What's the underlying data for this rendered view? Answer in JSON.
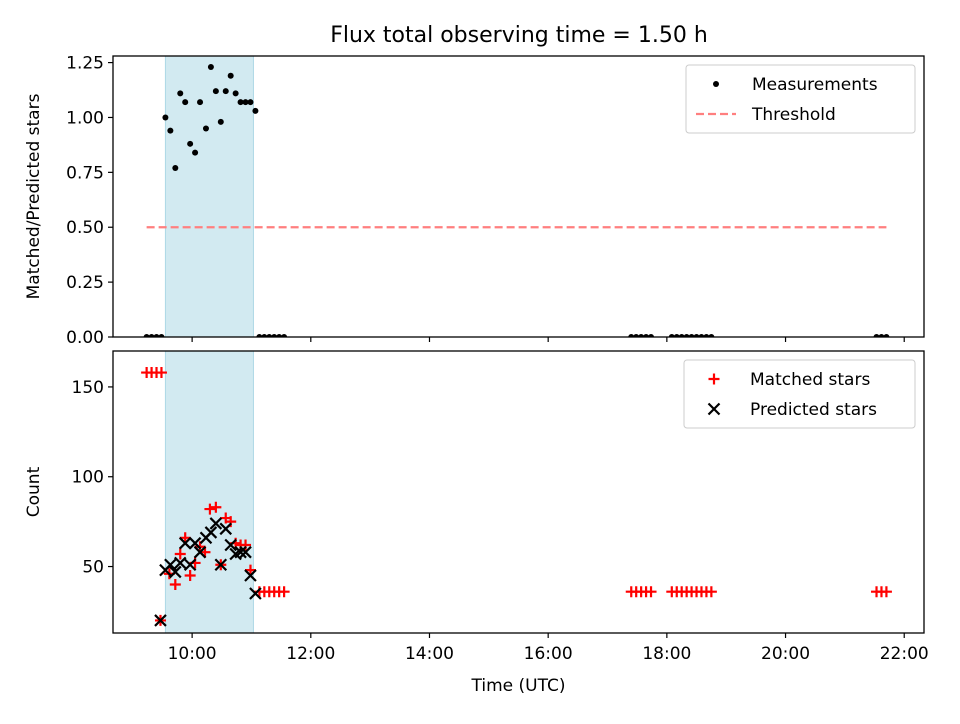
{
  "title": "Flux total observing time = 1.50 h",
  "chart_data": [
    {
      "type": "scatter",
      "panel": "top",
      "ylabel": "Matched/Predicted stars",
      "xlabel": "",
      "x_range": [
        "08:40",
        "22:20"
      ],
      "ylim": [
        0,
        1.28
      ],
      "yticks": [
        0.0,
        0.25,
        0.5,
        0.75,
        1.0,
        1.25
      ],
      "ytick_labels": [
        "0.00",
        "0.25",
        "0.50",
        "0.75",
        "1.00",
        "1.25"
      ],
      "highlight_span": [
        "09:33",
        "11:02"
      ],
      "legend_position": "top-right",
      "series": [
        {
          "name": "Measurements",
          "marker": "dot",
          "color": "#000000",
          "points": [
            [
              "09:14",
              0.0
            ],
            [
              "09:19",
              0.0
            ],
            [
              "09:24",
              0.0
            ],
            [
              "09:29",
              0.0
            ],
            [
              "09:33",
              1.0
            ],
            [
              "09:38",
              0.94
            ],
            [
              "09:43",
              0.77
            ],
            [
              "09:48",
              1.11
            ],
            [
              "09:53",
              1.07
            ],
            [
              "09:58",
              0.88
            ],
            [
              "10:03",
              0.84
            ],
            [
              "10:08",
              1.07
            ],
            [
              "10:14",
              0.95
            ],
            [
              "10:19",
              1.23
            ],
            [
              "10:24",
              1.12
            ],
            [
              "10:29",
              0.98
            ],
            [
              "10:34",
              1.12
            ],
            [
              "10:39",
              1.19
            ],
            [
              "10:44",
              1.11
            ],
            [
              "10:49",
              1.07
            ],
            [
              "10:54",
              1.07
            ],
            [
              "10:59",
              1.07
            ],
            [
              "11:04",
              1.03
            ],
            [
              "11:08",
              0.0
            ],
            [
              "11:13",
              0.0
            ],
            [
              "11:18",
              0.0
            ],
            [
              "11:23",
              0.0
            ],
            [
              "11:28",
              0.0
            ],
            [
              "11:33",
              0.0
            ],
            [
              "17:24",
              0.0
            ],
            [
              "17:29",
              0.0
            ],
            [
              "17:34",
              0.0
            ],
            [
              "17:39",
              0.0
            ],
            [
              "17:44",
              0.0
            ],
            [
              "18:05",
              0.0
            ],
            [
              "18:10",
              0.0
            ],
            [
              "18:15",
              0.0
            ],
            [
              "18:20",
              0.0
            ],
            [
              "18:25",
              0.0
            ],
            [
              "18:30",
              0.0
            ],
            [
              "18:35",
              0.0
            ],
            [
              "18:40",
              0.0
            ],
            [
              "18:45",
              0.0
            ],
            [
              "21:32",
              0.0
            ],
            [
              "21:37",
              0.0
            ],
            [
              "21:42",
              0.0
            ]
          ]
        },
        {
          "name": "Threshold",
          "style": "dashed",
          "color": "#ff7f7f",
          "points": [
            [
              "09:14",
              0.5
            ],
            [
              "21:42",
              0.5
            ]
          ]
        }
      ]
    },
    {
      "type": "scatter",
      "panel": "bottom",
      "ylabel": "Count",
      "xlabel": "Time (UTC)",
      "x_range": [
        "08:40",
        "22:20"
      ],
      "ylim": [
        13,
        170
      ],
      "yticks": [
        50,
        100,
        150
      ],
      "ytick_labels": [
        "50",
        "100",
        "150"
      ],
      "xtick_labels": [
        "10:00",
        "12:00",
        "14:00",
        "16:00",
        "18:00",
        "20:00",
        "22:00"
      ],
      "highlight_span": [
        "09:33",
        "11:02"
      ],
      "legend_position": "top-right",
      "series": [
        {
          "name": "Matched stars",
          "marker": "plus",
          "color": "#ff0000",
          "points": [
            [
              "09:14",
              158
            ],
            [
              "09:19",
              158
            ],
            [
              "09:24",
              158
            ],
            [
              "09:29",
              158
            ],
            [
              "09:28",
              20
            ],
            [
              "09:37",
              46
            ],
            [
              "09:43",
              40
            ],
            [
              "09:48",
              57
            ],
            [
              "09:53",
              66
            ],
            [
              "09:58",
              45
            ],
            [
              "10:03",
              52
            ],
            [
              "10:08",
              61
            ],
            [
              "10:13",
              58
            ],
            [
              "10:18",
              82
            ],
            [
              "10:24",
              83
            ],
            [
              "10:29",
              51
            ],
            [
              "10:34",
              77
            ],
            [
              "10:39",
              75
            ],
            [
              "10:44",
              63
            ],
            [
              "10:49",
              62
            ],
            [
              "10:54",
              62
            ],
            [
              "10:59",
              48
            ],
            [
              "11:08",
              36
            ],
            [
              "11:13",
              36
            ],
            [
              "11:18",
              36
            ],
            [
              "11:23",
              36
            ],
            [
              "11:28",
              36
            ],
            [
              "11:33",
              36
            ],
            [
              "17:24",
              36
            ],
            [
              "17:29",
              36
            ],
            [
              "17:34",
              36
            ],
            [
              "17:39",
              36
            ],
            [
              "17:44",
              36
            ],
            [
              "18:05",
              36
            ],
            [
              "18:10",
              36
            ],
            [
              "18:15",
              36
            ],
            [
              "18:20",
              36
            ],
            [
              "18:25",
              36
            ],
            [
              "18:30",
              36
            ],
            [
              "18:35",
              36
            ],
            [
              "18:40",
              36
            ],
            [
              "18:45",
              36
            ],
            [
              "21:32",
              36
            ],
            [
              "21:37",
              36
            ],
            [
              "21:42",
              36
            ]
          ]
        },
        {
          "name": "Predicted stars",
          "marker": "x",
          "color": "#000000",
          "points": [
            [
              "09:28",
              20
            ],
            [
              "09:33",
              48
            ],
            [
              "09:38",
              51
            ],
            [
              "09:43",
              47
            ],
            [
              "09:48",
              52
            ],
            [
              "09:53",
              63
            ],
            [
              "09:58",
              51
            ],
            [
              "10:03",
              63
            ],
            [
              "10:08",
              58
            ],
            [
              "10:14",
              66
            ],
            [
              "10:19",
              69
            ],
            [
              "10:24",
              74
            ],
            [
              "10:29",
              51
            ],
            [
              "10:34",
              71
            ],
            [
              "10:39",
              62
            ],
            [
              "10:44",
              57
            ],
            [
              "10:49",
              58
            ],
            [
              "10:54",
              58
            ],
            [
              "10:59",
              45
            ],
            [
              "11:04",
              35
            ]
          ]
        }
      ]
    }
  ]
}
